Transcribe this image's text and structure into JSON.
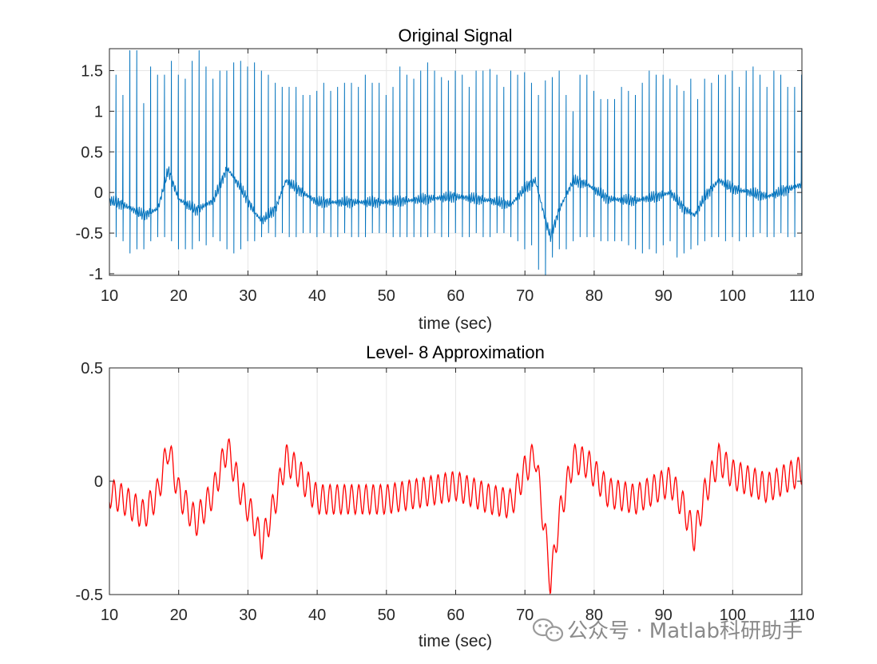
{
  "chart_data": [
    {
      "type": "line",
      "title": "Original Signal",
      "xlabel": "time (sec)",
      "ylabel": "",
      "xlim": [
        10,
        110
      ],
      "ylim": [
        -1.02,
        1.77
      ],
      "xticks": [
        10,
        20,
        30,
        40,
        50,
        60,
        70,
        80,
        90,
        100,
        110
      ],
      "yticks": [
        -1,
        -0.5,
        0,
        0.5,
        1,
        1.5
      ],
      "ytick_labels": [
        "-1",
        "-0.5",
        "0",
        "0.5",
        "1",
        "1.5"
      ],
      "grid": true,
      "color": "#0072bd",
      "series": [
        {
          "name": "Original Signal",
          "baseline": [
            [
              10,
              -0.1
            ],
            [
              12,
              -0.15
            ],
            [
              15,
              -0.28
            ],
            [
              17,
              -0.2
            ],
            [
              18.5,
              0.28
            ],
            [
              20,
              -0.08
            ],
            [
              22.5,
              -0.22
            ],
            [
              25,
              -0.1
            ],
            [
              27,
              0.3
            ],
            [
              29,
              0.05
            ],
            [
              31,
              -0.25
            ],
            [
              32,
              -0.35
            ],
            [
              34,
              -0.2
            ],
            [
              35.5,
              0.15
            ],
            [
              37,
              0.05
            ],
            [
              40,
              -0.12
            ],
            [
              50,
              -0.12
            ],
            [
              60,
              -0.05
            ],
            [
              65,
              -0.1
            ],
            [
              68,
              -0.15
            ],
            [
              70,
              0.05
            ],
            [
              71.5,
              0.15
            ],
            [
              73,
              -0.35
            ],
            [
              73.7,
              -0.55
            ],
            [
              75,
              -0.2
            ],
            [
              77,
              0.15
            ],
            [
              79,
              0.1
            ],
            [
              82,
              -0.08
            ],
            [
              86,
              -0.1
            ],
            [
              89,
              -0.05
            ],
            [
              91,
              0.0
            ],
            [
              93,
              -0.2
            ],
            [
              94.5,
              -0.28
            ],
            [
              96,
              -0.05
            ],
            [
              98,
              0.15
            ],
            [
              100,
              0.05
            ],
            [
              105,
              -0.05
            ],
            [
              110,
              0.1
            ]
          ],
          "spike_peaks": [
            1.45,
            1.2,
            1.75,
            1.75,
            1.1,
            1.55,
            1.45,
            1.45,
            1.62,
            1.45,
            1.4,
            1.62,
            1.75,
            1.55,
            1.4,
            1.5,
            1.5,
            1.6,
            1.62,
            1.55,
            1.6,
            1.5,
            1.45,
            1.35,
            1.3,
            1.3,
            1.3,
            1.2,
            1.2,
            1.25,
            1.35,
            1.25,
            1.3,
            1.35,
            1.35,
            1.3,
            1.45,
            1.35,
            1.35,
            1.2,
            1.3,
            1.55,
            1.45,
            1.4,
            1.5,
            1.6,
            1.5,
            1.42,
            1.38,
            1.5,
            1.45,
            1.3,
            1.5,
            1.5,
            1.52,
            1.45,
            1.3,
            1.5,
            1.45,
            1.48,
            1.35,
            1.2,
            1.38,
            1.42,
            1.5,
            1.2,
            1.0,
            1.45,
            1.45,
            1.25,
            1.15,
            1.15,
            1.15,
            1.3,
            1.25,
            1.2,
            1.35,
            1.5,
            1.45,
            1.45,
            1.4,
            1.32,
            1.25,
            1.4,
            1.15,
            1.4,
            1.35,
            1.45,
            1.45,
            1.5,
            1.3,
            1.5,
            1.55,
            1.45,
            1.3,
            1.5,
            1.45,
            1.3,
            1.3,
            1.45
          ],
          "spike_troughs": [
            -0.55,
            -0.6,
            -0.75,
            -0.7,
            -0.7,
            -0.6,
            -0.55,
            -0.55,
            -0.6,
            -0.7,
            -0.7,
            -0.7,
            -0.6,
            -0.65,
            -0.55,
            -0.6,
            -0.7,
            -0.75,
            -0.7,
            -0.6,
            -0.6,
            -0.55,
            -0.5,
            -0.55,
            -0.5,
            -0.55,
            -0.55,
            -0.5,
            -0.5,
            -0.55,
            -0.5,
            -0.55,
            -0.55,
            -0.5,
            -0.55,
            -0.55,
            -0.55,
            -0.5,
            -0.5,
            -0.5,
            -0.55,
            -0.55,
            -0.55,
            -0.55,
            -0.55,
            -0.55,
            -0.5,
            -0.55,
            -0.55,
            -0.5,
            -0.55,
            -0.55,
            -0.5,
            -0.55,
            -0.55,
            -0.5,
            -0.5,
            -0.55,
            -0.6,
            -0.7,
            -0.65,
            -0.95,
            -1.02,
            -0.8,
            -0.7,
            -0.7,
            -0.6,
            -0.55,
            -0.55,
            -0.55,
            -0.6,
            -0.6,
            -0.6,
            -0.6,
            -0.65,
            -0.7,
            -0.75,
            -0.7,
            -0.75,
            -0.65,
            -0.6,
            -0.8,
            -0.75,
            -0.7,
            -0.65,
            -0.6,
            -0.55,
            -0.55,
            -0.6,
            -0.55,
            -0.6,
            -0.55,
            -0.55,
            -0.5,
            -0.55,
            -0.55,
            -0.5,
            -0.55,
            -0.55,
            -0.5
          ]
        }
      ]
    },
    {
      "type": "line",
      "title": "Level- 8 Approximation",
      "xlabel": "time (sec)",
      "ylabel": "",
      "xlim": [
        10,
        110
      ],
      "ylim": [
        -0.5,
        0.5
      ],
      "xticks": [
        10,
        20,
        30,
        40,
        50,
        60,
        70,
        80,
        90,
        100,
        110
      ],
      "yticks": [
        -0.5,
        0,
        0.5
      ],
      "ytick_labels": [
        "-0.5",
        "0",
        "0.5"
      ],
      "grid": true,
      "color": "#ff0000",
      "series": [
        {
          "name": "Level- 8 Approximation",
          "baseline": [
            [
              10,
              -0.05
            ],
            [
              12,
              -0.08
            ],
            [
              15,
              -0.15
            ],
            [
              17,
              -0.05
            ],
            [
              18.5,
              0.15
            ],
            [
              20,
              -0.05
            ],
            [
              22.5,
              -0.18
            ],
            [
              25,
              -0.05
            ],
            [
              27,
              0.15
            ],
            [
              29,
              -0.05
            ],
            [
              31,
              -0.18
            ],
            [
              32,
              -0.28
            ],
            [
              34,
              -0.08
            ],
            [
              35.5,
              0.1
            ],
            [
              37,
              0.05
            ],
            [
              40,
              -0.08
            ],
            [
              50,
              -0.08
            ],
            [
              60,
              -0.02
            ],
            [
              65,
              -0.08
            ],
            [
              68,
              -0.1
            ],
            [
              70,
              0.05
            ],
            [
              71.5,
              0.12
            ],
            [
              73,
              -0.25
            ],
            [
              73.7,
              -0.45
            ],
            [
              75,
              -0.15
            ],
            [
              77,
              0.1
            ],
            [
              79,
              0.08
            ],
            [
              82,
              -0.05
            ],
            [
              86,
              -0.08
            ],
            [
              89,
              -0.03
            ],
            [
              91,
              0.0
            ],
            [
              93,
              -0.12
            ],
            [
              94.5,
              -0.25
            ],
            [
              96,
              -0.05
            ],
            [
              98,
              0.1
            ],
            [
              100,
              0.03
            ],
            [
              105,
              -0.03
            ],
            [
              110,
              0.05
            ]
          ],
          "amplitude": 0.065
        }
      ]
    }
  ],
  "watermark": {
    "text": "公众号 · Matlab科研助手",
    "icon": "wechat-icon"
  }
}
